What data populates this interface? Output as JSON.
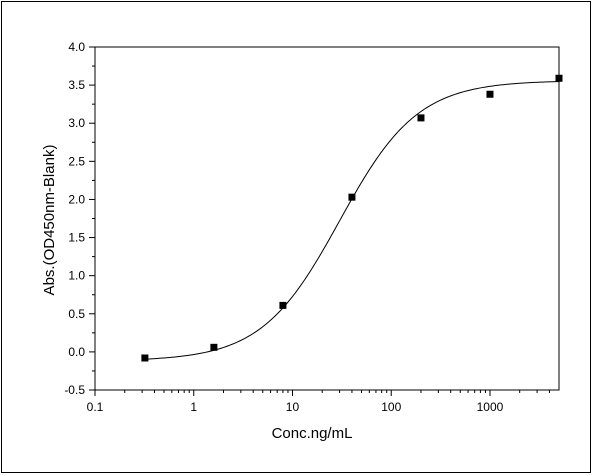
{
  "chart_data": {
    "type": "scatter",
    "title": "",
    "xlabel": "Conc.ng/mL",
    "ylabel": "Abs.(OD450nm-Blank)",
    "x_scale": "log",
    "xlim": [
      0.1,
      5000
    ],
    "ylim": [
      -0.5,
      4.0
    ],
    "x_ticks": [
      0.1,
      1,
      10,
      100,
      1000
    ],
    "x_tick_labels": [
      "0.1",
      "1",
      "10",
      "100",
      "1000"
    ],
    "y_ticks": [
      -0.5,
      0.0,
      0.5,
      1.0,
      1.5,
      2.0,
      2.5,
      3.0,
      3.5,
      4.0
    ],
    "y_tick_labels": [
      "-0.5",
      "0.0",
      "0.5",
      "1.0",
      "1.5",
      "2.0",
      "2.5",
      "3.0",
      "3.5",
      "4.0"
    ],
    "grid": false,
    "series": [
      {
        "marker": "square",
        "color": "#000000",
        "points": [
          {
            "x": 0.32,
            "y": -0.08
          },
          {
            "x": 1.6,
            "y": 0.06
          },
          {
            "x": 8,
            "y": 0.61
          },
          {
            "x": 40,
            "y": 2.03
          },
          {
            "x": 200,
            "y": 3.07
          },
          {
            "x": 1000,
            "y": 3.38
          },
          {
            "x": 5000,
            "y": 3.59
          }
        ]
      }
    ],
    "fit_curve": {
      "type": "4PL",
      "bottom": -0.12,
      "top": 3.56,
      "ec50": 30,
      "hill": 1.1,
      "color": "#000000"
    }
  }
}
